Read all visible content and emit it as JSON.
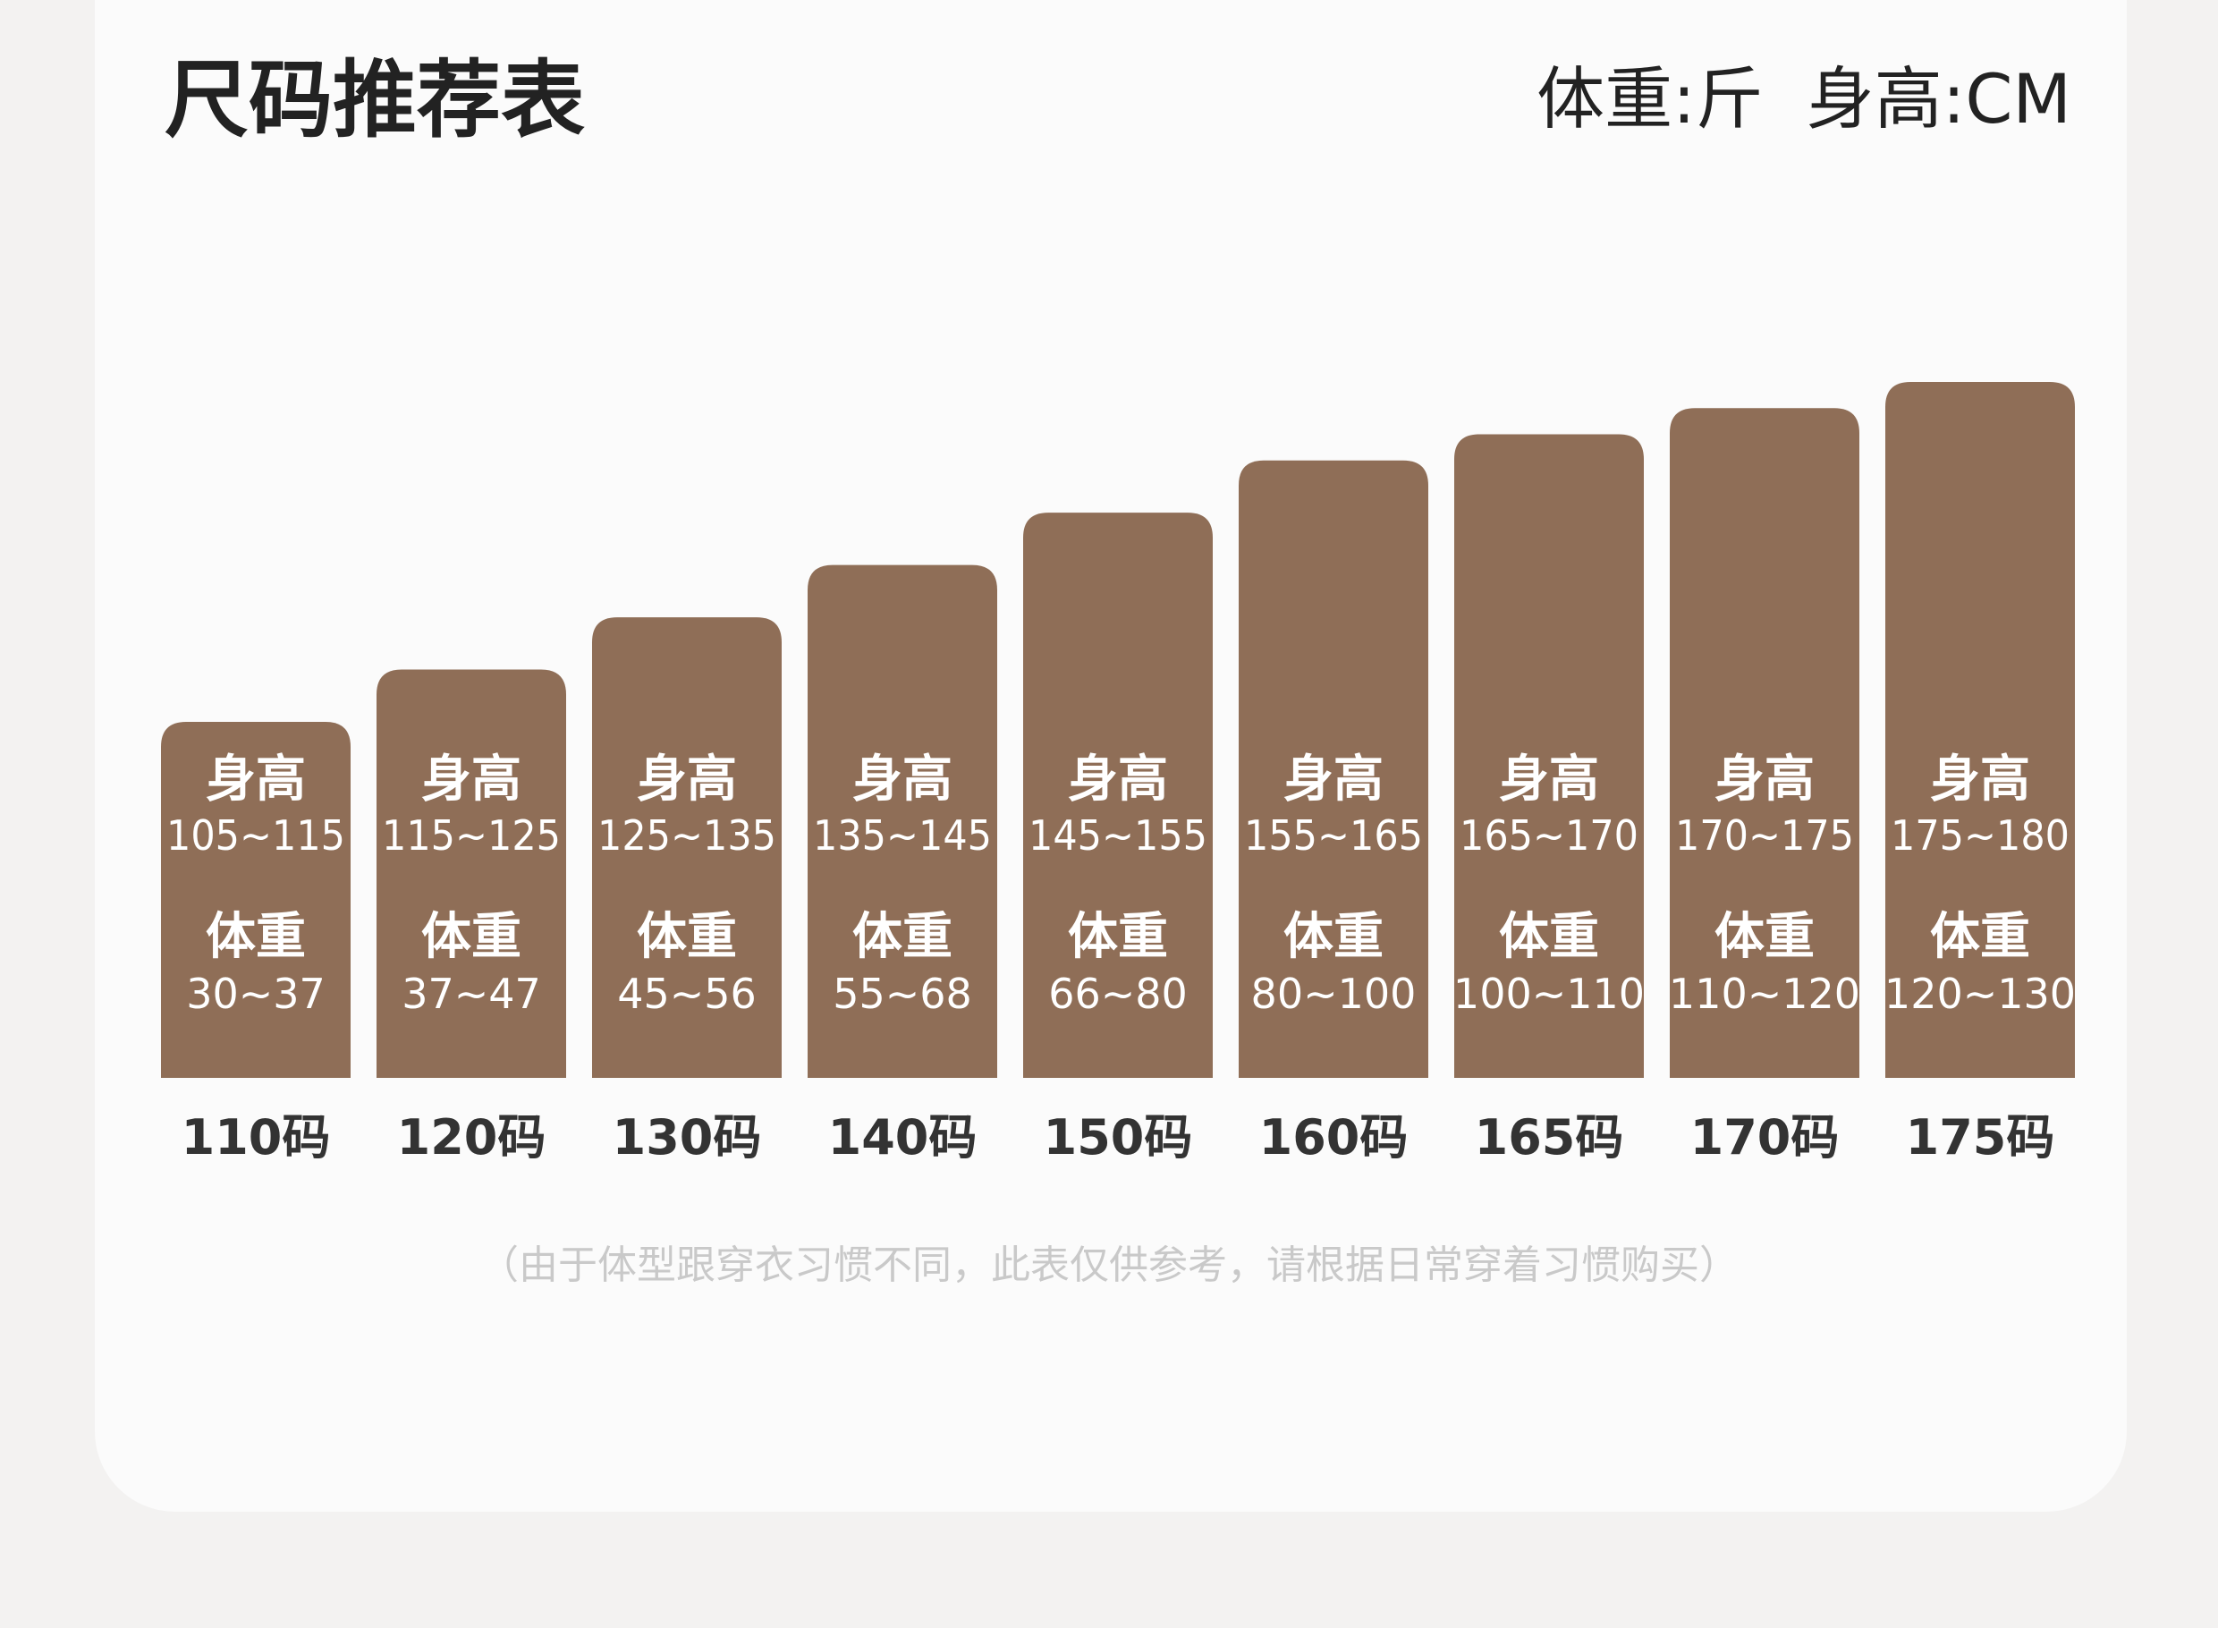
{
  "title": "尺码推荐表",
  "units": {
    "weight": "体重:斤",
    "height": "身高:CM"
  },
  "note": "（由于体型跟穿衣习惯不同，此表仅供参考，请根据日常穿着习惯购买）",
  "colors": {
    "bar": "#8f6e57",
    "bar_text": "#ffffff",
    "category_text": "#333333",
    "note_text": "#c9c9c9"
  },
  "chart_data": {
    "type": "bar",
    "title": "尺码推荐表",
    "xlabel": "",
    "ylabel": "",
    "categories": [
      "110码",
      "120码",
      "130码",
      "140码",
      "150码",
      "160码",
      "165码",
      "170码",
      "175码"
    ],
    "height_label": "身高",
    "weight_label": "体重",
    "height_ranges": [
      "105~115",
      "115~125",
      "125~135",
      "135~145",
      "145~155",
      "155~165",
      "165~170",
      "170~175",
      "175~180"
    ],
    "weight_ranges": [
      "30~37",
      "37~47",
      "45~56",
      "55~68",
      "66~80",
      "80~100",
      "100~110",
      "110~120",
      "120~130"
    ],
    "values": [
      110,
      120,
      130,
      140,
      150,
      160,
      165,
      170,
      175
    ],
    "grid": false,
    "legend": "none"
  }
}
